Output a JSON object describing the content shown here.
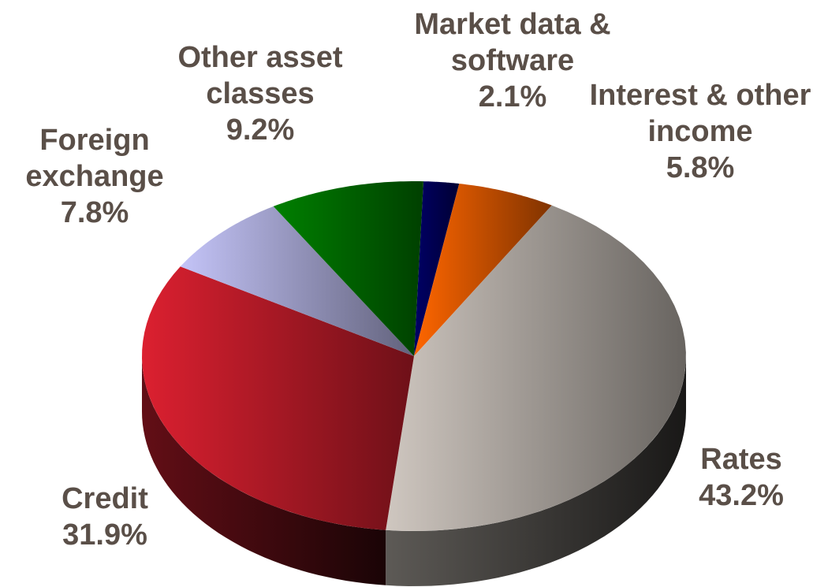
{
  "chart_data": {
    "type": "pie3d",
    "categories": [
      "Market data & software",
      "Interest & other income",
      "Rates",
      "Credit",
      "Foreign exchange",
      "Other asset classes"
    ],
    "values": [
      2.1,
      5.8,
      43.2,
      31.9,
      7.8,
      9.2
    ],
    "value_labels": [
      "2.1%",
      "5.8%",
      "43.2%",
      "31.9%",
      "7.8%",
      "9.2%"
    ],
    "colors": [
      "#000066",
      "#ff6600",
      "#cfc7c0",
      "#dc2030",
      "#c4c4f8",
      "#008000"
    ]
  }
}
